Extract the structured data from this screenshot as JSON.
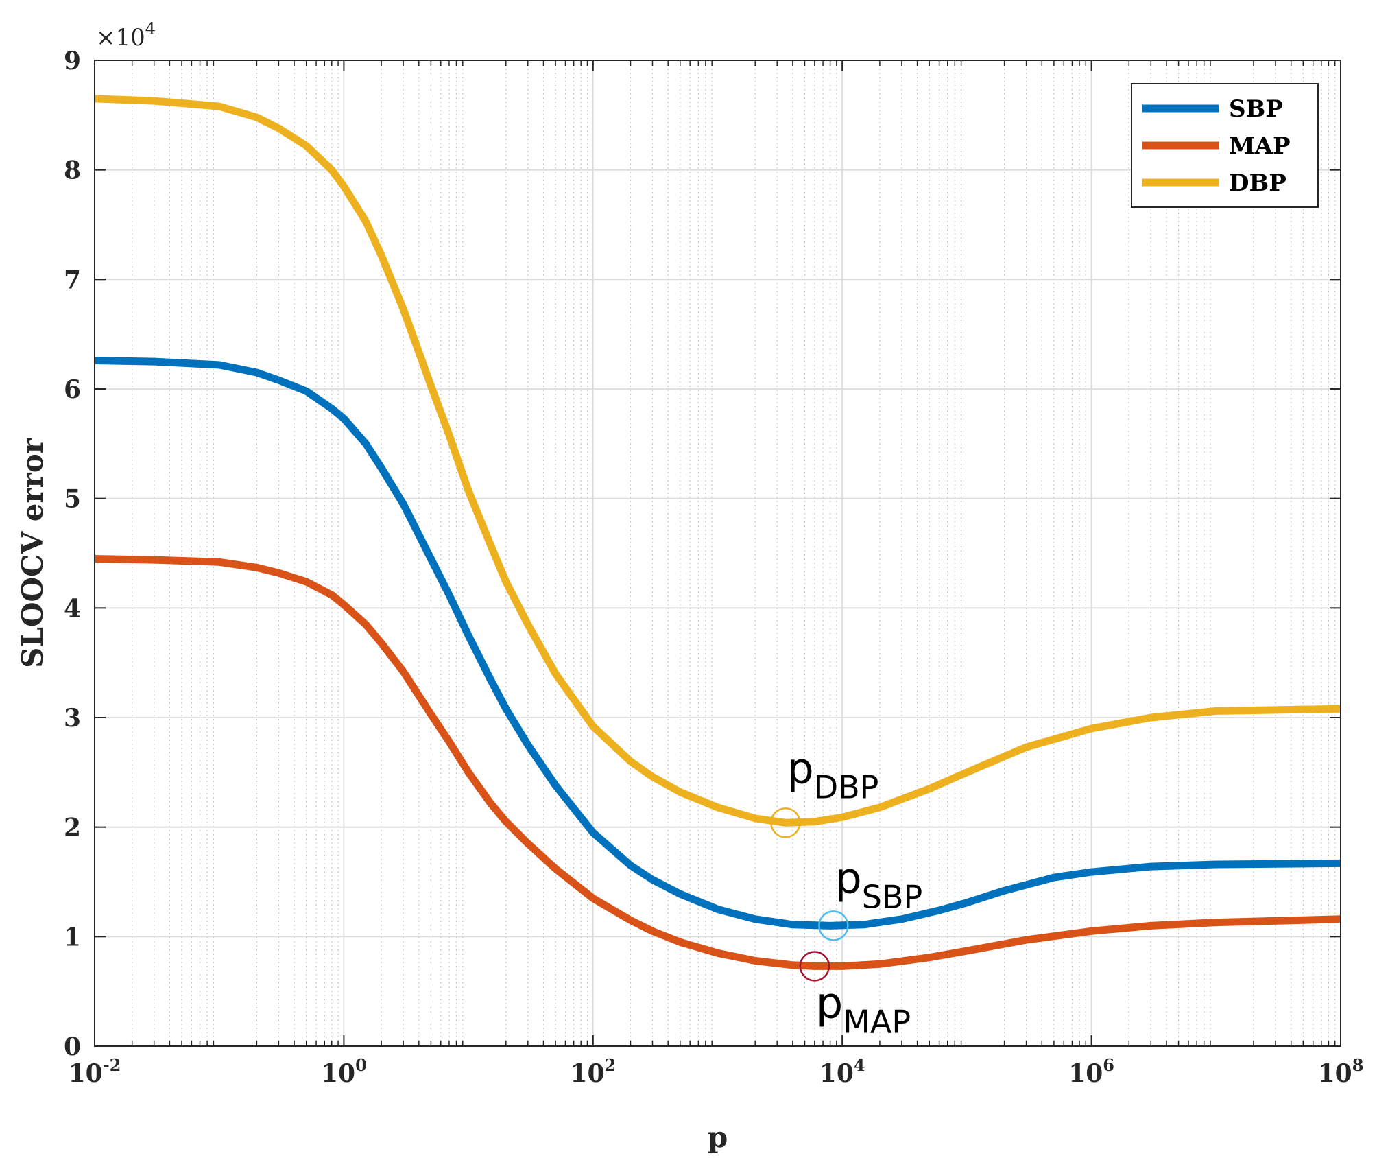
{
  "chart_data": {
    "type": "line",
    "xlabel": "p",
    "ylabel": "SLOOCV error",
    "xscale": "log",
    "xlim": [
      0.01,
      100000000
    ],
    "ylim": [
      0,
      90000
    ],
    "y_multiplier": {
      "base": "×10",
      "exponent": "4"
    },
    "xticks": [
      {
        "base": "10",
        "exp": "-2",
        "value": 0.01
      },
      {
        "base": "10",
        "exp": "0",
        "value": 1
      },
      {
        "base": "10",
        "exp": "2",
        "value": 100
      },
      {
        "base": "10",
        "exp": "4",
        "value": 10000
      },
      {
        "base": "10",
        "exp": "6",
        "value": 1000000
      },
      {
        "base": "10",
        "exp": "8",
        "value": 100000000
      }
    ],
    "yticks": [
      {
        "label": "0",
        "value": 0
      },
      {
        "label": "1",
        "value": 10000
      },
      {
        "label": "2",
        "value": 20000
      },
      {
        "label": "3",
        "value": 30000
      },
      {
        "label": "4",
        "value": 40000
      },
      {
        "label": "5",
        "value": 50000
      },
      {
        "label": "6",
        "value": 60000
      },
      {
        "label": "7",
        "value": 70000
      },
      {
        "label": "8",
        "value": 80000
      },
      {
        "label": "9",
        "value": 90000
      }
    ],
    "grid": true,
    "minor_grid": true,
    "legend_position": "top-right",
    "series": [
      {
        "name": "SBP",
        "color": "#0072BD",
        "points": [
          [
            0.01,
            62600
          ],
          [
            0.03,
            62500
          ],
          [
            0.1,
            62200
          ],
          [
            0.2,
            61500
          ],
          [
            0.3,
            60800
          ],
          [
            0.5,
            59800
          ],
          [
            0.8,
            58200
          ],
          [
            1,
            57300
          ],
          [
            1.5,
            55000
          ],
          [
            2,
            52800
          ],
          [
            3,
            49500
          ],
          [
            5,
            44500
          ],
          [
            7,
            41200
          ],
          [
            10,
            37500
          ],
          [
            15,
            33500
          ],
          [
            20,
            30800
          ],
          [
            30,
            27500
          ],
          [
            50,
            23800
          ],
          [
            100,
            19500
          ],
          [
            200,
            16500
          ],
          [
            300,
            15200
          ],
          [
            500,
            13900
          ],
          [
            1000,
            12500
          ],
          [
            2000,
            11600
          ],
          [
            4000,
            11100
          ],
          [
            8000,
            11000
          ],
          [
            15000,
            11100
          ],
          [
            30000,
            11600
          ],
          [
            60000,
            12400
          ],
          [
            100000,
            13100
          ],
          [
            200000,
            14200
          ],
          [
            500000,
            15400
          ],
          [
            1000000,
            15900
          ],
          [
            3000000,
            16400
          ],
          [
            10000000,
            16600
          ],
          [
            100000000,
            16700
          ]
        ]
      },
      {
        "name": "MAP",
        "color": "#D95319",
        "points": [
          [
            0.01,
            44500
          ],
          [
            0.03,
            44400
          ],
          [
            0.1,
            44200
          ],
          [
            0.2,
            43700
          ],
          [
            0.3,
            43200
          ],
          [
            0.5,
            42400
          ],
          [
            0.8,
            41200
          ],
          [
            1,
            40300
          ],
          [
            1.5,
            38500
          ],
          [
            2,
            36800
          ],
          [
            3,
            34200
          ],
          [
            5,
            30300
          ],
          [
            7,
            27800
          ],
          [
            10,
            25000
          ],
          [
            15,
            22200
          ],
          [
            20,
            20500
          ],
          [
            30,
            18500
          ],
          [
            50,
            16200
          ],
          [
            100,
            13500
          ],
          [
            200,
            11500
          ],
          [
            300,
            10500
          ],
          [
            500,
            9500
          ],
          [
            1000,
            8500
          ],
          [
            2000,
            7800
          ],
          [
            4000,
            7400
          ],
          [
            6000,
            7300
          ],
          [
            10000,
            7300
          ],
          [
            20000,
            7500
          ],
          [
            50000,
            8100
          ],
          [
            100000,
            8700
          ],
          [
            300000,
            9700
          ],
          [
            1000000,
            10500
          ],
          [
            3000000,
            11000
          ],
          [
            10000000,
            11300
          ],
          [
            100000000,
            11600
          ]
        ]
      },
      {
        "name": "DBP",
        "color": "#EDB120",
        "points": [
          [
            0.01,
            86500
          ],
          [
            0.03,
            86300
          ],
          [
            0.1,
            85800
          ],
          [
            0.2,
            84800
          ],
          [
            0.3,
            83800
          ],
          [
            0.5,
            82200
          ],
          [
            0.8,
            80000
          ],
          [
            1,
            78500
          ],
          [
            1.5,
            75300
          ],
          [
            2,
            72200
          ],
          [
            3,
            67300
          ],
          [
            5,
            60300
          ],
          [
            7,
            55800
          ],
          [
            10,
            50700
          ],
          [
            15,
            45800
          ],
          [
            20,
            42400
          ],
          [
            30,
            38500
          ],
          [
            50,
            34000
          ],
          [
            100,
            29200
          ],
          [
            200,
            26000
          ],
          [
            300,
            24600
          ],
          [
            500,
            23200
          ],
          [
            1000,
            21800
          ],
          [
            2000,
            20800
          ],
          [
            3500,
            20400
          ],
          [
            6000,
            20500
          ],
          [
            10000,
            20900
          ],
          [
            20000,
            21800
          ],
          [
            50000,
            23500
          ],
          [
            100000,
            25000
          ],
          [
            300000,
            27300
          ],
          [
            1000000,
            29000
          ],
          [
            3000000,
            30000
          ],
          [
            10000000,
            30600
          ],
          [
            100000000,
            30800
          ]
        ]
      }
    ],
    "markers": [
      {
        "series": "DBP",
        "x": 3500,
        "y": 20400,
        "color": "#EDB120",
        "label_base": "p",
        "label_sub": "DBP",
        "label_anchor": "above-right"
      },
      {
        "series": "SBP",
        "x": 8500,
        "y": 11000,
        "color": "#4DBEEE",
        "label_base": "p",
        "label_sub": "SBP",
        "label_anchor": "above"
      },
      {
        "series": "MAP",
        "x": 6000,
        "y": 7300,
        "color": "#A2142F",
        "label_base": "p",
        "label_sub": "MAP",
        "label_anchor": "below"
      }
    ]
  }
}
